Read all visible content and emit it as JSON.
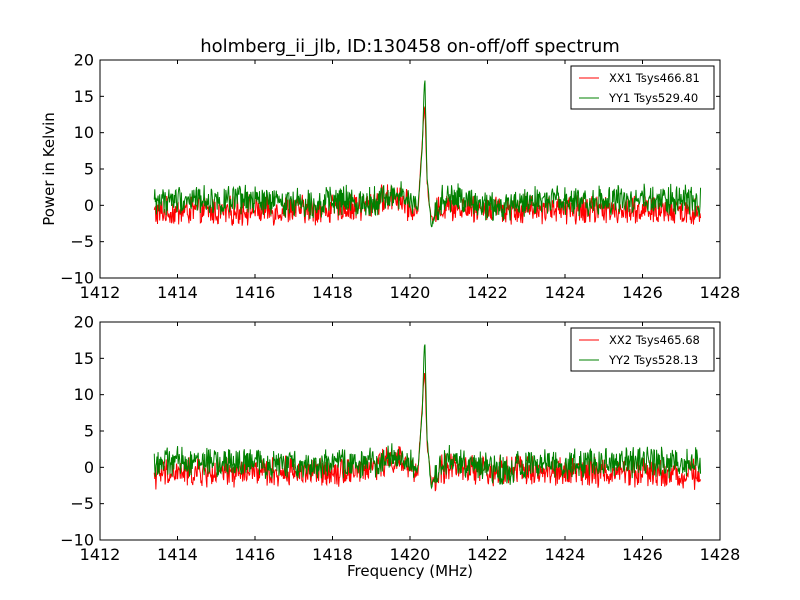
{
  "figure": {
    "title": "holmberg_ii_jlb, ID:130458 on-off/off spectrum",
    "xlabel": "Frequency (MHz)",
    "ylabel": "Power in Kelvin"
  },
  "chart_data": [
    {
      "type": "line",
      "xlim": [
        1412,
        1428
      ],
      "ylim": [
        -10,
        20
      ],
      "xticks": [
        1412,
        1414,
        1416,
        1418,
        1420,
        1422,
        1424,
        1426,
        1428
      ],
      "yticks": [
        -10,
        -5,
        0,
        5,
        10,
        15,
        20
      ],
      "grid": false,
      "legend_position": "top-right",
      "xlabel": "",
      "ylabel": "Power in Kelvin",
      "series": [
        {
          "name": "XX1 Tsys466.81",
          "color": "#ff0000",
          "x": [
            1413.4,
            1414.0,
            1414.6,
            1415.2,
            1415.8,
            1416.4,
            1417.0,
            1417.6,
            1418.2,
            1418.8,
            1419.3,
            1419.7,
            1420.0,
            1420.2,
            1420.32,
            1420.38,
            1420.44,
            1420.55,
            1420.8,
            1421.2,
            1421.8,
            1422.4,
            1423.0,
            1423.6,
            1424.2,
            1424.8,
            1425.4,
            1426.0,
            1426.6,
            1427.2,
            1427.5
          ],
          "y": [
            -1.0,
            -0.9,
            -0.7,
            -1.0,
            -0.6,
            -0.8,
            -0.5,
            -0.7,
            -0.4,
            -0.2,
            0.8,
            1.2,
            -0.5,
            -1.0,
            9.0,
            14.5,
            3.0,
            -2.0,
            -0.3,
            0.0,
            -0.4,
            -0.5,
            -0.4,
            -0.6,
            -0.5,
            -0.6,
            -0.5,
            -0.7,
            -0.8,
            -0.9,
            -1.0
          ]
        },
        {
          "name": "YY1 Tsys529.40",
          "color": "#008000",
          "x": [
            1413.4,
            1414.0,
            1414.6,
            1415.2,
            1415.8,
            1416.4,
            1417.0,
            1417.6,
            1418.2,
            1418.8,
            1419.3,
            1419.7,
            1420.0,
            1420.2,
            1420.32,
            1420.38,
            1420.44,
            1420.55,
            1420.8,
            1421.2,
            1421.8,
            1422.4,
            1423.0,
            1423.6,
            1424.2,
            1424.8,
            1425.4,
            1426.0,
            1426.6,
            1427.2,
            1427.5
          ],
          "y": [
            0.6,
            0.8,
            0.9,
            0.5,
            0.7,
            0.4,
            0.5,
            0.3,
            0.6,
            0.4,
            1.0,
            1.5,
            0.5,
            -0.5,
            8.0,
            18.5,
            4.0,
            -3.0,
            0.8,
            0.9,
            0.2,
            -0.5,
            0.4,
            0.6,
            0.5,
            0.7,
            0.6,
            0.8,
            0.7,
            0.9,
            0.7
          ]
        }
      ]
    },
    {
      "type": "line",
      "xlim": [
        1412,
        1428
      ],
      "ylim": [
        -10,
        20
      ],
      "xticks": [
        1412,
        1414,
        1416,
        1418,
        1420,
        1422,
        1424,
        1426,
        1428
      ],
      "yticks": [
        -10,
        -5,
        0,
        5,
        10,
        15,
        20
      ],
      "grid": false,
      "legend_position": "top-right",
      "xlabel": "Frequency (MHz)",
      "ylabel": "",
      "series": [
        {
          "name": "XX2 Tsys465.68",
          "color": "#ff0000",
          "x": [
            1413.4,
            1414.0,
            1414.6,
            1415.2,
            1415.8,
            1416.4,
            1417.0,
            1417.6,
            1418.2,
            1418.8,
            1419.3,
            1419.7,
            1420.0,
            1420.2,
            1420.32,
            1420.38,
            1420.44,
            1420.55,
            1420.8,
            1421.2,
            1421.8,
            1422.4,
            1423.0,
            1423.6,
            1424.2,
            1424.8,
            1425.4,
            1426.0,
            1426.6,
            1427.2,
            1427.5
          ],
          "y": [
            -1.0,
            -0.8,
            -0.7,
            -0.9,
            -0.6,
            -0.8,
            -0.5,
            -0.7,
            -0.4,
            -0.3,
            0.7,
            1.1,
            -0.5,
            -1.0,
            9.0,
            14.0,
            3.0,
            -2.0,
            -0.3,
            0.0,
            -0.4,
            -0.5,
            -0.4,
            -0.6,
            -0.5,
            -0.6,
            -0.5,
            -0.7,
            -0.8,
            -0.9,
            -1.0
          ]
        },
        {
          "name": "YY2 Tsys528.13",
          "color": "#008000",
          "x": [
            1413.4,
            1414.0,
            1414.6,
            1415.2,
            1415.8,
            1416.4,
            1417.0,
            1417.6,
            1418.2,
            1418.8,
            1419.3,
            1419.7,
            1420.0,
            1420.2,
            1420.32,
            1420.38,
            1420.44,
            1420.55,
            1420.8,
            1421.2,
            1421.8,
            1422.4,
            1423.0,
            1423.6,
            1424.2,
            1424.8,
            1425.4,
            1426.0,
            1426.6,
            1427.2,
            1427.5
          ],
          "y": [
            0.6,
            0.8,
            0.9,
            0.5,
            0.7,
            0.4,
            0.5,
            0.3,
            0.6,
            0.4,
            1.0,
            1.5,
            0.5,
            -0.5,
            8.0,
            18.5,
            4.0,
            -3.0,
            0.8,
            0.9,
            0.2,
            -0.5,
            0.4,
            0.6,
            0.5,
            0.7,
            0.6,
            0.8,
            0.7,
            0.9,
            0.7
          ]
        }
      ]
    }
  ]
}
